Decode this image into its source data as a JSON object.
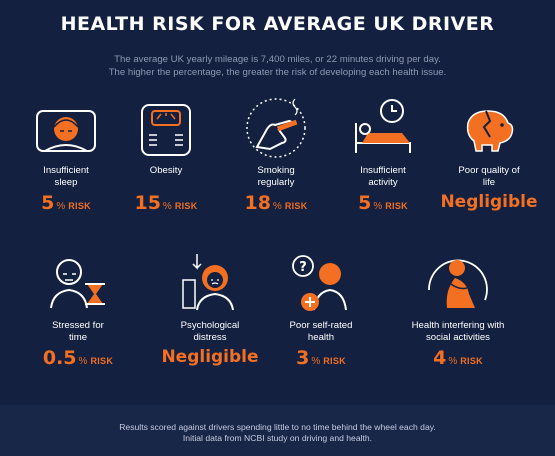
{
  "title": "HEALTH RISK FOR AVERAGE UK DRIVER",
  "subtitle_line1": "The average UK yearly mileage is 7,400 miles, or 22 minutes driving per day.",
  "subtitle_line2": "The higher the percentage, the greater the risk of developing each health issue.",
  "risk_word": "RISK",
  "pct": "%",
  "items": [
    {
      "label": "Insufficient sleep",
      "value": "5",
      "icon": "sleeping-person-icon"
    },
    {
      "label": "Obesity",
      "value": "15",
      "icon": "weighing-scale-icon"
    },
    {
      "label": "Smoking regularly",
      "value": "18",
      "icon": "cigarette-hand-icon"
    },
    {
      "label": "Insufficient activity",
      "value": "5",
      "icon": "bed-clock-icon"
    },
    {
      "label": "Poor quality of life",
      "value": "Negligible",
      "icon": "broken-piggy-bank-icon"
    },
    {
      "label": "Stressed for time",
      "value": "0.5",
      "icon": "hourglass-person-icon"
    },
    {
      "label": "Psychological distress",
      "value": "Negligible",
      "icon": "distressed-person-icon"
    },
    {
      "label": "Poor self-rated health",
      "value": "3",
      "icon": "confused-person-icon"
    },
    {
      "label": "Health interfering with social activities",
      "value": "4",
      "icon": "lonely-person-icon"
    }
  ],
  "footer_line1": "Results scored against drivers spending little to no time behind the wheel each day.",
  "footer_line2": "Initial data from NCBI study on driving and health.",
  "colors": {
    "background": "#13203f",
    "accent": "#f36f21",
    "text": "#ffffff"
  }
}
